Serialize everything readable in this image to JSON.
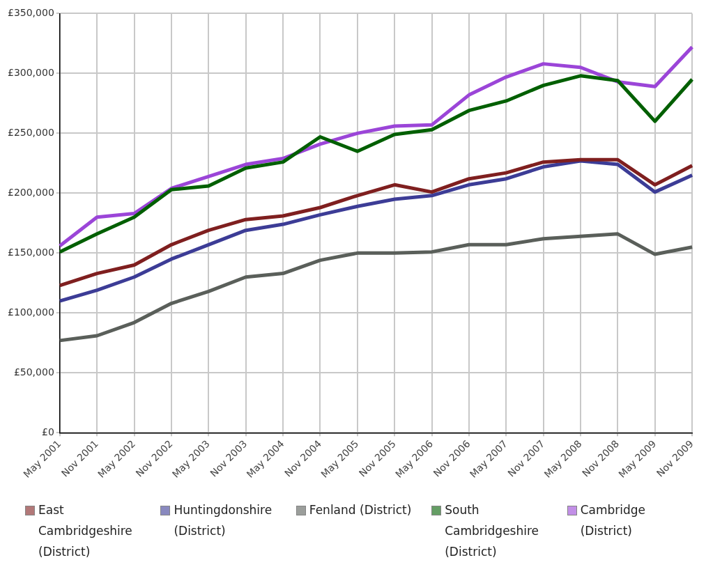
{
  "chart_data": {
    "type": "line",
    "categories": [
      "May 2001",
      "Nov 2001",
      "May 2002",
      "Nov 2002",
      "May 2003",
      "Nov 2003",
      "May 2004",
      "Nov 2004",
      "May 2005",
      "Nov 2005",
      "May 2006",
      "Nov 2006",
      "May 2007",
      "Nov 2007",
      "May 2008",
      "Nov 2008",
      "May 2009",
      "Nov 2009"
    ],
    "series": [
      {
        "name": "East Cambridgeshire (District)",
        "color": "#7f1f1f",
        "values": [
          123000,
          133000,
          140000,
          157000,
          169000,
          178000,
          181000,
          188000,
          198000,
          207000,
          201000,
          212000,
          217000,
          226000,
          228000,
          228000,
          207000,
          223000
        ]
      },
      {
        "name": "Huntingdonshire (District)",
        "color": "#3c3c96",
        "values": [
          110000,
          119000,
          130000,
          145000,
          157000,
          169000,
          174000,
          182000,
          189000,
          195000,
          198000,
          207000,
          212000,
          222000,
          227000,
          224000,
          201000,
          215000
        ]
      },
      {
        "name": "Fenland (District)",
        "color": "#5a5f5a",
        "values": [
          77000,
          81000,
          92000,
          108000,
          118000,
          130000,
          133000,
          144000,
          150000,
          150000,
          151000,
          157000,
          157000,
          162000,
          164000,
          166000,
          149000,
          155000
        ]
      },
      {
        "name": "South Cambridgeshire (District)",
        "color": "#005f00",
        "values": [
          151000,
          166000,
          180000,
          203000,
          206000,
          221000,
          226000,
          247000,
          235000,
          249000,
          253000,
          269000,
          277000,
          290000,
          298000,
          294000,
          260000,
          295000
        ]
      },
      {
        "name": "Cambridge (District)",
        "color": "#9b45d8",
        "values": [
          156000,
          180000,
          183000,
          204000,
          214000,
          224000,
          229000,
          241000,
          250000,
          256000,
          257000,
          282000,
          297000,
          308000,
          305000,
          293000,
          289000,
          322000
        ]
      }
    ],
    "ylim": [
      0,
      350000
    ],
    "yticks": [
      {
        "value": 0,
        "label": "£0"
      },
      {
        "value": 50000,
        "label": "£50,000"
      },
      {
        "value": 100000,
        "label": "£100,000"
      },
      {
        "value": 150000,
        "label": "£150,000"
      },
      {
        "value": 200000,
        "label": "£200,000"
      },
      {
        "value": 250000,
        "label": "£250,000"
      },
      {
        "value": 300000,
        "label": "£300,000"
      },
      {
        "value": 350000,
        "label": "£350,000"
      }
    ],
    "grid": true,
    "legend": "bottom",
    "marker": "none",
    "line_style": "solid"
  }
}
